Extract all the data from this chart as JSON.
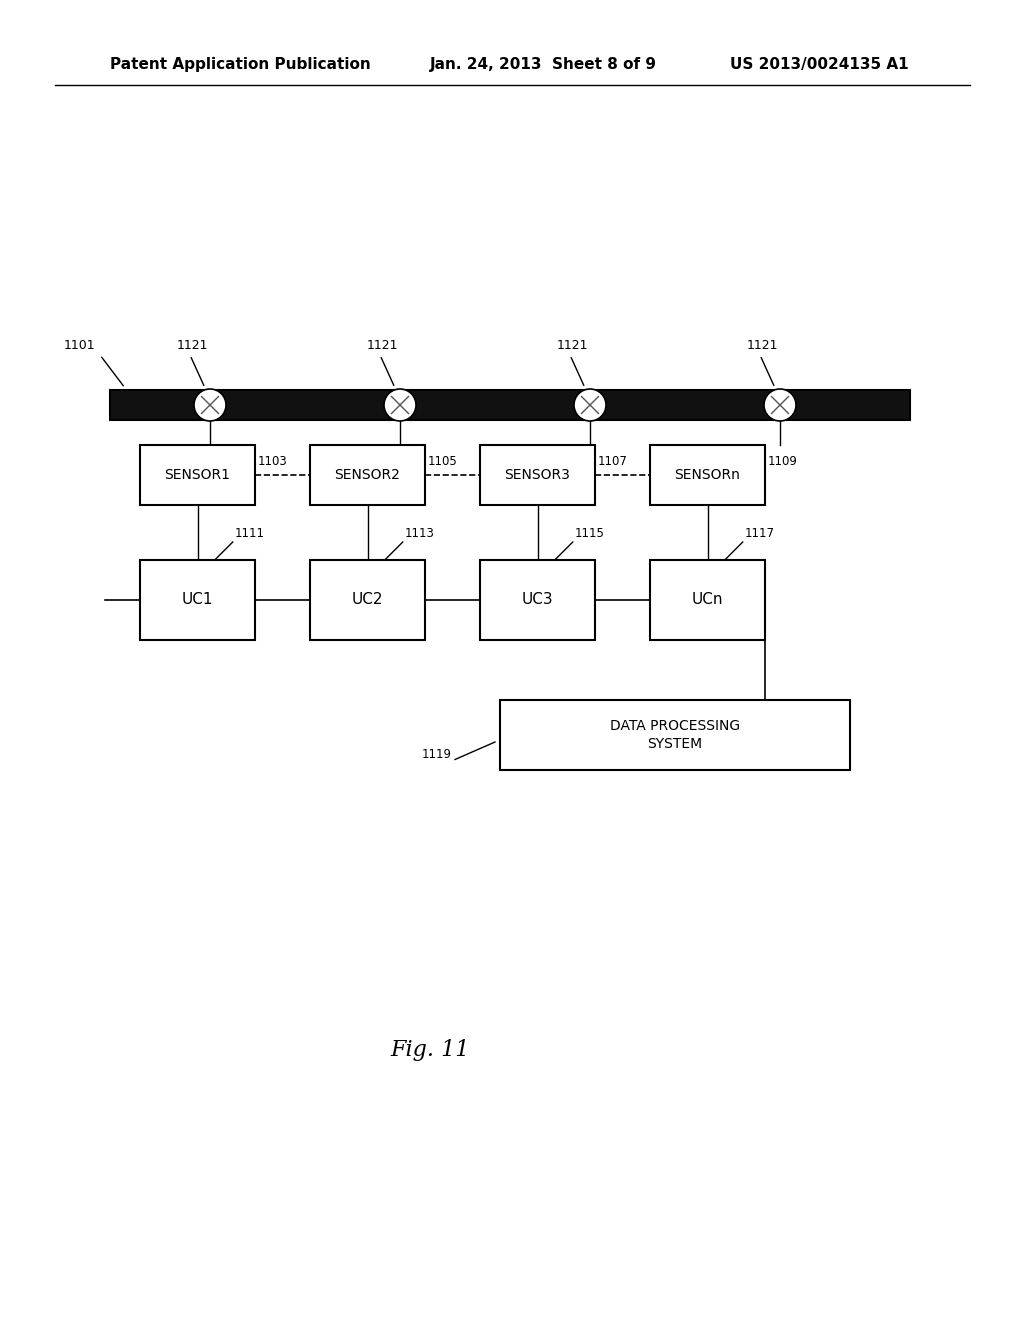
{
  "bg_color": "#ffffff",
  "header_left": "Patent Application Publication",
  "header_mid": "Jan. 24, 2013  Sheet 8 of 9",
  "header_right": "US 2013/0024135 A1",
  "fig_label": "Fig. 11",
  "cable_label": "1101",
  "circle_label": "1121",
  "sensor_ids": [
    "1103",
    "1105",
    "1107",
    "1109"
  ],
  "uc_ids": [
    "1111",
    "1113",
    "1115",
    "1117"
  ],
  "dps_id": "1119",
  "sensor_labels": [
    "SENSOR1",
    "SENSOR2",
    "SENSOR3",
    "SENSORn"
  ],
  "uc_labels": [
    "UC1",
    "UC2",
    "UC3",
    "UCn"
  ],
  "dps_label": "DATA PROCESSING\nSYSTEM"
}
